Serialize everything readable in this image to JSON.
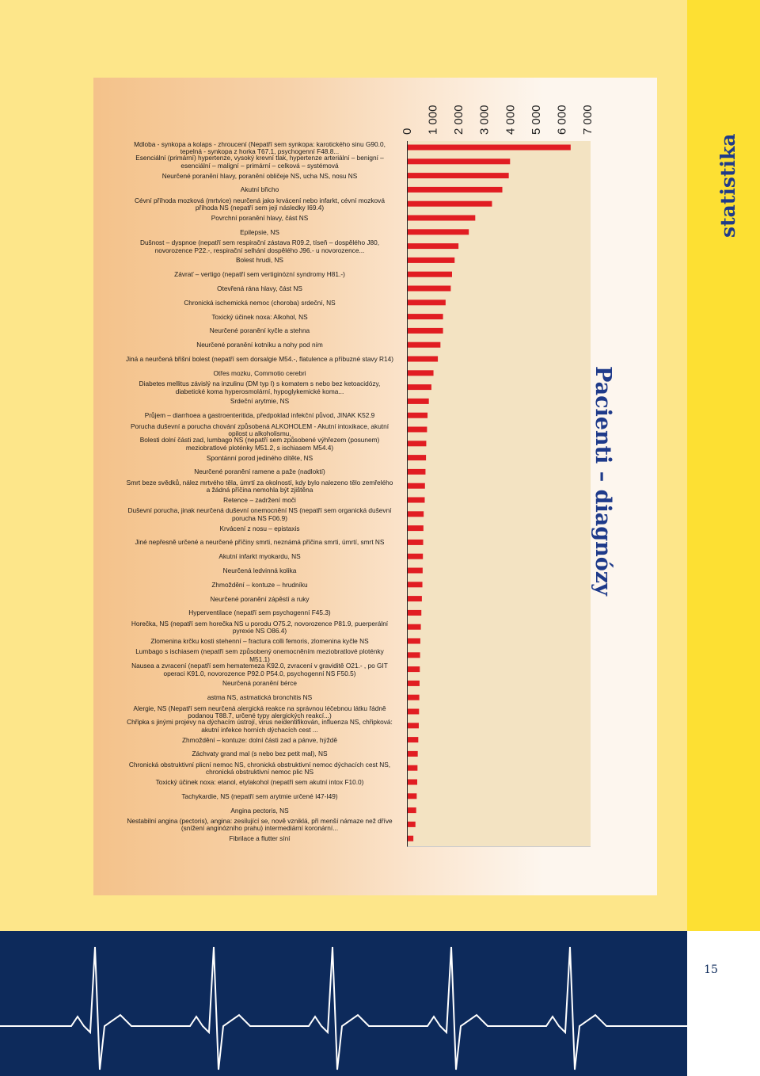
{
  "sidebar_title": "statistika",
  "page_number": "15",
  "colors": {
    "bar": "#e11d22",
    "navy": "#0d2a5b",
    "title": "#1e3a8a",
    "yellow": "#fde033"
  },
  "chart_data": {
    "type": "bar",
    "orientation": "horizontal",
    "title": "Pacienti – diagnózy",
    "xlim": [
      0,
      7000
    ],
    "ticks": [
      "0",
      "1 000",
      "2 000",
      "3 000",
      "4 000",
      "5 000",
      "6 000",
      "7 000"
    ],
    "categories": [
      "Mdloba - synkopa a kolaps - zhroucení  (Nepatří sem synkopa: karotického sinu G90.0, tepelná - synkopa z horka T67.1, psychogenní F48.8...",
      "Esenciální (primární) hypertenze, vysoký krevní tlak, hypertenze arteriální – benigní – esenciální – maligní – primární – celková – systémová",
      "Neurčené poranění hlavy, poranění obličeje NS, ucha NS, nosu NS",
      "Akutní břicho",
      "Cévní příhoda mozková (mrtvice) neurčená jako krvácení nebo infarkt, cévní mozková příhoda NS (nepatří sem její následky I69.4)",
      "Povrchní poranění hlavy, část NS",
      "Epilepsie, NS",
      "Dušnost – dyspnoe  (nepatří sem respirační zástava R09.2, tíseň – dospělého J80, novorozence P22.-, respirační selhání dospělého J96.- u novorozence...",
      "Bolest hrudi, NS",
      "Závrať – vertigo (nepatří sem vertiginózní syndromy H81.-)",
      "Otevřená rána hlavy, část NS",
      "Chronická ischemická nemoc (choroba) srdeční, NS",
      "Toxický účinek noxa: Alkohol, NS",
      "Neurčené poranění kyčle a stehna",
      "Neurčené poranění kotníku a nohy pod ním",
      "Jiná a neurčená břišní bolest (nepatří sem dorsalgie M54.-, flatulence a příbuzné stavy R14)",
      "Otřes mozku, Commotio cerebri",
      "Diabetes mellitus závislý na inzulinu (DM typ I) s komatem s nebo bez ketoacidózy, diabetické koma hyperosmolární, hypoglykemické koma...",
      "Srdeční arytmie, NS",
      "Průjem – diarrhoea a gastroenteritida, předpoklad infekční původ, JINAK K52.9",
      "Porucha duševní a porucha chování způsobená ALKOHOLEM - Akutní intoxikace, akutní opilost u alkoholismu,",
      "Bolesti dolní části zad, lumbago NS (nepatří sem způsobené výhřezem (posunem) meziobratlové ploténky M51.2, s ischiasem M54.4)",
      "Spontánní porod jediného dítěte, NS",
      "Neurčené poranění ramene a paže (nadloktí)",
      "Smrt beze svědků, nález mrtvého těla, úmrtí za okolností, kdy bylo nalezeno tělo zemřelého a žádná příčina nemohla být zjištěna",
      "Retence – zadržení moči",
      "Duševní porucha, jinak neurčená duševní onemocnění NS (nepatří sem organická duševní porucha NS F06.9)",
      "Krvácení z nosu – epistaxis",
      "Jiné nepřesně určené a neurčené příčiny smrti, neznámá příčina smrti, úmrtí, smrt NS",
      "Akutní infarkt myokardu, NS",
      "Neurčená ledvinná kolika",
      "Zhmoždění – kontuze – hrudníku",
      "Neurčené poranění zápěstí a ruky",
      "Hyperventilace  (nepatří sem psychogenní F45.3)",
      "Horečka, NS (nepatří sem horečka NS u porodu O75.2, novorozence P81.9, puerperální pyrexie NS O86.4)",
      "Zlomenina krčku kosti stehenní – fractura colli femoris, zlomenina kyčle NS",
      "Lumbago s ischiasem (nepatří sem způsobený onemocněním meziobratlové ploténky M51.1)",
      "Nausea a zvracení (nepatří sem hematemeza K92.0, zvracení v graviditě O21.- , po GIT operaci K91.0, novorozence P92.0 P54.0, psychogenní NS F50.5)",
      "Neurčená poranění bérce",
      "astma NS, astmatická bronchitis NS",
      "Alergie, NS (Nepatří sem neurčená alergická reakce na správnou léčebnou látku řádně podanou T88.7, určené typy alergických reakcí...)",
      "Chřipka s jinými projevy na dýchacím ústrojí, virus neidentifikován,  influenza NS, chřipková: akutní infekce horních dýchacích cest ...",
      "Zhmoždění – kontuze: dolní části zad a pánve, hýždě",
      "Záchvaty grand mal (s nebo bez petit mal), NS",
      "Chronická obstruktivní plicní nemoc NS, chronická obstruktivní nemoc dýchacích cest NS, chronická obstruktivní nemoc plic NS",
      "Toxický účinek noxa: etanol, etylakohol (nepatří sem akutní intox F10.0)",
      "Tachykardie, NS (nepatří sem arytmie určené I47-I49)",
      "Angina pectoris, NS",
      "Nestabilní angina (pectoris), angina: zesilující se, nově vzniklá, při menší námaze než dříve (snížení anginózního prahu) intermediární koronární...",
      "Fibrilace a flutter síní"
    ],
    "values": [
      6350,
      4000,
      3950,
      3700,
      3300,
      2650,
      2400,
      2000,
      1850,
      1750,
      1700,
      1500,
      1400,
      1400,
      1300,
      1200,
      1030,
      950,
      850,
      800,
      780,
      750,
      740,
      720,
      700,
      690,
      650,
      640,
      630,
      620,
      610,
      600,
      580,
      560,
      540,
      520,
      510,
      500,
      490,
      480,
      470,
      460,
      440,
      420,
      410,
      400,
      380,
      360,
      330,
      250
    ]
  }
}
